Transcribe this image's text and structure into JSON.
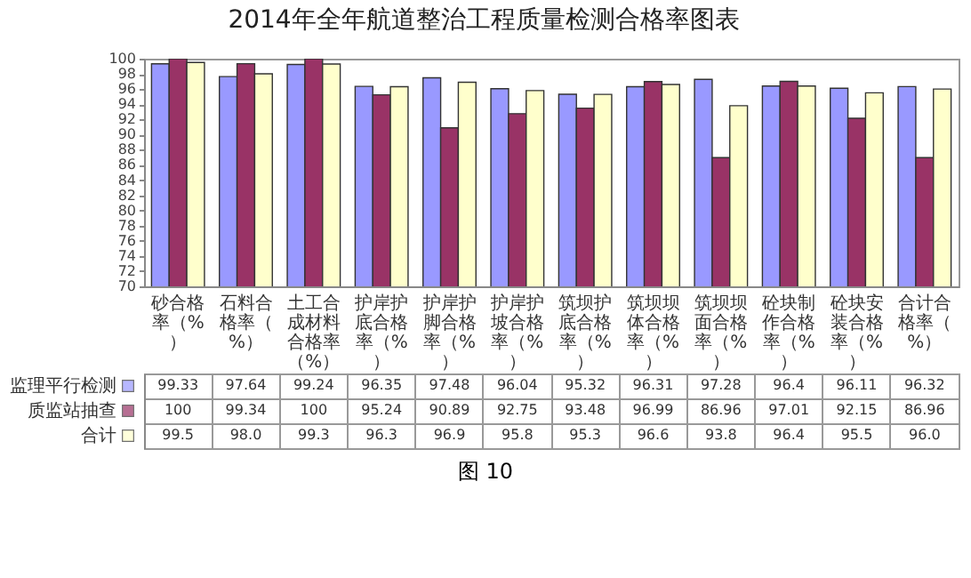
{
  "chart_data": {
    "type": "bar",
    "title": "2014年全年航道整治工程质量检测合格率图表",
    "categories": [
      "砂合格率（%）",
      "石料合格率（%）",
      "土工合成材料合格率（%）",
      "护岸护底合格率（%）",
      "护岸护脚合格率（%）",
      "护岸护坡合格率（%）",
      "筑坝护底合格率（%）",
      "筑坝坝体合格率（%）",
      "筑坝坝面合格率（%）",
      "砼块制作合格率（%）",
      "砼块安装合格率（%）",
      "合计合格率（%）"
    ],
    "series": [
      {
        "name": "监理平行检测",
        "color": "#9999ff",
        "values": [
          99.33,
          97.64,
          99.24,
          96.35,
          97.48,
          96.04,
          95.32,
          96.31,
          97.28,
          96.4,
          96.11,
          96.32
        ],
        "value_labels": [
          "99.33",
          "97.64",
          "99.24",
          "96.35",
          "97.48",
          "96.04",
          "95.32",
          "96.31",
          "97.28",
          "96.4",
          "96.11",
          "96.32"
        ]
      },
      {
        "name": "质监站抽查",
        "color": "#993366",
        "values": [
          100,
          99.34,
          100,
          95.24,
          90.89,
          92.75,
          93.48,
          96.99,
          86.96,
          97.01,
          92.15,
          86.96
        ],
        "value_labels": [
          "100",
          "99.34",
          "100",
          "95.24",
          "90.89",
          "92.75",
          "93.48",
          "96.99",
          "86.96",
          "97.01",
          "92.15",
          "86.96"
        ]
      },
      {
        "name": "合计",
        "color": "#ffffcc",
        "values": [
          99.5,
          98.0,
          99.3,
          96.3,
          96.9,
          95.8,
          95.3,
          96.6,
          93.8,
          96.4,
          95.5,
          96.0
        ],
        "value_labels": [
          "99.5",
          "98.0",
          "99.3",
          "96.3",
          "96.9",
          "95.8",
          "95.3",
          "96.6",
          "93.8",
          "96.4",
          "95.5",
          "96.0"
        ]
      }
    ],
    "ylim": [
      70,
      100
    ],
    "yticks": [
      70,
      72,
      74,
      76,
      78,
      80,
      82,
      84,
      86,
      88,
      90,
      92,
      94,
      96,
      98,
      100
    ],
    "legend": "bottom left",
    "annotations": [
      "图 10"
    ]
  }
}
